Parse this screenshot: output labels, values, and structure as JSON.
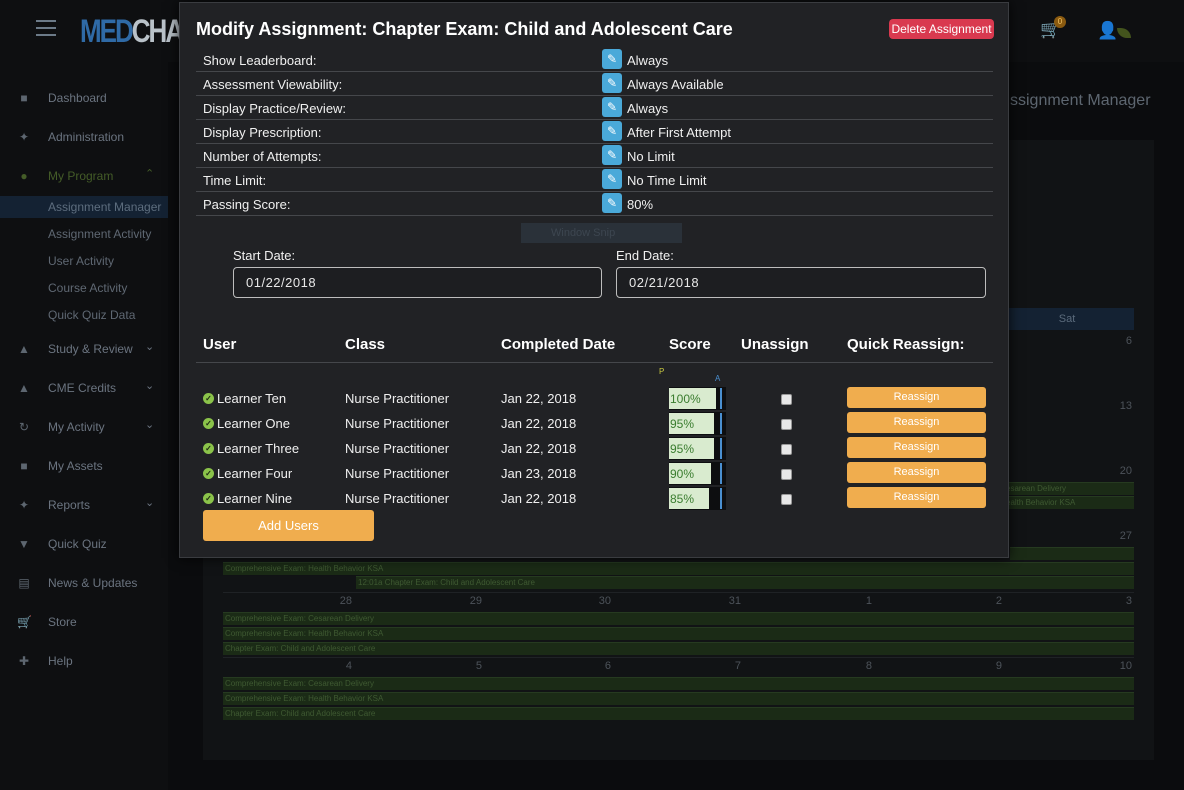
{
  "app": {
    "logo_text_a": "MED",
    "logo_text_b": "CHALLENGER",
    "cart_badge": "0",
    "page_heading": "ssignment Manager"
  },
  "sidebar": {
    "items": [
      {
        "label": "Dashboard",
        "icon": "dashboard-icon"
      },
      {
        "label": "Administration",
        "icon": "wrench-icon"
      },
      {
        "label": "My Program",
        "icon": "users-icon"
      },
      {
        "label": "Study & Review",
        "icon": "graduation-cap-icon"
      },
      {
        "label": "CME Credits",
        "icon": "bell-icon"
      },
      {
        "label": "My Activity",
        "icon": "history-icon"
      },
      {
        "label": "My Assets",
        "icon": "book-icon"
      },
      {
        "label": "Reports",
        "icon": "wrench-icon"
      },
      {
        "label": "Quick Quiz",
        "icon": "trophy-icon"
      },
      {
        "label": "News & Updates",
        "icon": "newspaper-icon"
      },
      {
        "label": "Store",
        "icon": "cart-icon"
      },
      {
        "label": "Help",
        "icon": "medkit-icon"
      }
    ],
    "subitems": [
      "Assignment Manager",
      "Assignment Activity",
      "User Activity",
      "Course Activity",
      "Quick Quiz Data"
    ]
  },
  "calendar": {
    "sat_header": "Sat",
    "day_numbers": [
      "6",
      "13",
      "20",
      "27",
      "28",
      "29",
      "30",
      "31",
      "1",
      "2",
      "3",
      "4",
      "5",
      "6",
      "7",
      "8",
      "9",
      "10"
    ],
    "bars": {
      "cesarean": "Comprehensive Exam: Cesarean Delivery",
      "health": "Comprehensive Exam: Health Behavior KSA",
      "chapter": "Chapter Exam: Child and Adolescent Care",
      "chapter_timed": "12:01a Chapter Exam: Child and Adolescent Care",
      "cesarean_short": "esarean Delivery",
      "health_short": "ealth Behavior KSA"
    },
    "snip_label": "Window Snip"
  },
  "modal": {
    "title": "Modify Assignment: Chapter Exam: Child and Adolescent Care",
    "delete_label": "Delete Assignment",
    "settings": [
      {
        "name": "Show Leaderboard:",
        "value": "Always"
      },
      {
        "name": "Assessment Viewability:",
        "value": "Always Available"
      },
      {
        "name": "Display Practice/Review:",
        "value": "Always"
      },
      {
        "name": "Display Prescription:",
        "value": "After First Attempt"
      },
      {
        "name": "Number of Attempts:",
        "value": "No Limit"
      },
      {
        "name": "Time Limit:",
        "value": "No Time Limit"
      },
      {
        "name": "Passing Score:",
        "value": "80%"
      }
    ],
    "start_date_label": "Start Date:",
    "start_date": "01/22/2018",
    "end_date_label": "End Date:",
    "end_date": "02/21/2018",
    "table": {
      "headers": [
        "User",
        "Class",
        "Completed Date",
        "Score",
        "Unassign",
        "Quick Reassign:"
      ],
      "p_label": "P",
      "a_label": "A",
      "rows": [
        {
          "user": "Learner Ten",
          "class": "Nurse Practitioner",
          "date": "Jan 22, 2018",
          "score": "100%",
          "score_value": 100
        },
        {
          "user": "Learner One",
          "class": "Nurse Practitioner",
          "date": "Jan 22, 2018",
          "score": "95%",
          "score_value": 95
        },
        {
          "user": "Learner Three",
          "class": "Nurse Practitioner",
          "date": "Jan 22, 2018",
          "score": "95%",
          "score_value": 95
        },
        {
          "user": "Learner Four",
          "class": "Nurse Practitioner",
          "date": "Jan 23, 2018",
          "score": "90%",
          "score_value": 90
        },
        {
          "user": "Learner Nine",
          "class": "Nurse Practitioner",
          "date": "Jan 22, 2018",
          "score": "85%",
          "score_value": 85
        }
      ],
      "reassign_label": "Reassign"
    },
    "add_users_label": "Add Users"
  },
  "colors": {
    "accent_orange": "#f0ad4e",
    "delete_red": "#d9394f",
    "edit_blue": "#4aa9d9",
    "check_green": "#8bc34a"
  }
}
